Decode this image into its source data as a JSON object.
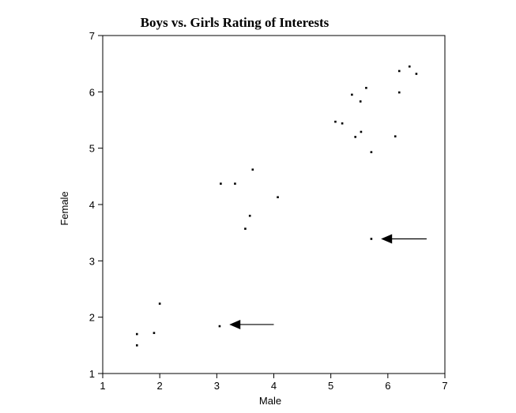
{
  "chart_data": {
    "type": "scatter",
    "title": "Boys vs. Girls Rating of Interests",
    "xlabel": "Male",
    "ylabel": "Female",
    "xlim": [
      1,
      7
    ],
    "ylim": [
      1,
      7
    ],
    "xticks": [
      "1",
      "2",
      "3",
      "4",
      "5",
      "6",
      "7"
    ],
    "yticks": [
      "1",
      "2",
      "3",
      "4",
      "5",
      "6",
      "7"
    ],
    "grid": false,
    "points": [
      {
        "x": 1.6,
        "y": 1.7
      },
      {
        "x": 1.6,
        "y": 1.5
      },
      {
        "x": 1.9,
        "y": 1.72
      },
      {
        "x": 2.0,
        "y": 2.24
      },
      {
        "x": 3.05,
        "y": 1.84
      },
      {
        "x": 3.07,
        "y": 4.37
      },
      {
        "x": 3.32,
        "y": 4.37
      },
      {
        "x": 3.5,
        "y": 3.57
      },
      {
        "x": 3.58,
        "y": 3.8
      },
      {
        "x": 3.63,
        "y": 4.62
      },
      {
        "x": 4.07,
        "y": 4.13
      },
      {
        "x": 5.08,
        "y": 5.47
      },
      {
        "x": 5.2,
        "y": 5.44
      },
      {
        "x": 5.37,
        "y": 5.95
      },
      {
        "x": 5.43,
        "y": 5.2
      },
      {
        "x": 5.52,
        "y": 5.83
      },
      {
        "x": 5.53,
        "y": 5.29
      },
      {
        "x": 5.62,
        "y": 6.07
      },
      {
        "x": 5.71,
        "y": 4.93
      },
      {
        "x": 5.71,
        "y": 3.39
      },
      {
        "x": 6.13,
        "y": 5.21
      },
      {
        "x": 6.2,
        "y": 6.37
      },
      {
        "x": 6.2,
        "y": 5.99
      },
      {
        "x": 6.38,
        "y": 6.45
      },
      {
        "x": 6.5,
        "y": 6.32
      }
    ],
    "annotations": [
      {
        "type": "arrow",
        "from": [
          4.0,
          1.87
        ],
        "to": [
          3.22,
          1.87
        ]
      },
      {
        "type": "arrow",
        "from": [
          6.68,
          3.39
        ],
        "to": [
          5.88,
          3.39
        ]
      }
    ]
  }
}
